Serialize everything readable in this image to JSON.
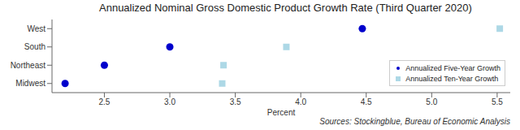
{
  "chart_data": {
    "type": "scatter",
    "orientation": "horizontal",
    "title": "Annualized Nominal Gross Domestic Product Growth Rate (Third Quarter 2020)",
    "source": "Sources: Stockingblue, Bureau of Economic Analysis",
    "x_label": "Percent",
    "categories": [
      "West",
      "South",
      "Northeast",
      "Midwest"
    ],
    "series": [
      {
        "name": "Annualized Five-Year Growth",
        "color": "#0000cc",
        "marker": "circle",
        "values": [
          4.47,
          3.0,
          2.5,
          2.2
        ]
      },
      {
        "name": "Annualized Ten-Year Growth",
        "color": "#add8e6",
        "marker": "square",
        "values": [
          5.52,
          3.89,
          3.41,
          3.4
        ]
      }
    ],
    "xlim": [
      2.1,
      5.6
    ],
    "xticks": [
      2.5,
      {
        "value": 3,
        "label": "3.0"
      },
      3.5,
      {
        "value": 4,
        "label": "4.0"
      },
      4.5,
      {
        "value": 5,
        "label": "5.0"
      },
      5.5
    ],
    "grid": false,
    "legend": "lower right"
  }
}
